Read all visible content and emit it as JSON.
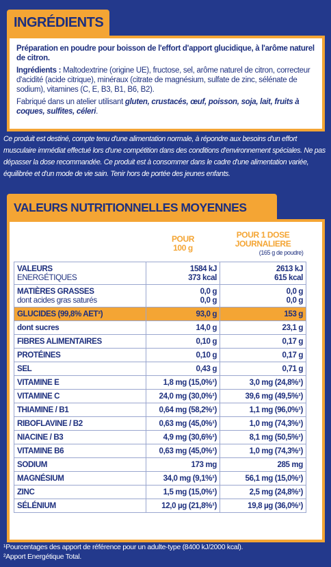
{
  "ingredients_section": {
    "title": "INGRÉDIENTS",
    "paragraphs": [
      [
        {
          "text": "Préparation en poudre pour boisson de l'effort d'apport glucidique, à l'arôme naturel de citron.",
          "style": "bold"
        }
      ],
      [
        {
          "text": "Ingrédients : ",
          "style": "bold"
        },
        {
          "text": "Maltodextrine (origine UE), fructose, sel, arôme naturel de citron, correcteur d'acidité (acide citrique), minéraux (citrate de magnésium, sulfate de zinc, sélénate de sodium), vitamines (C, E, B3, B1, B6, B2).",
          "style": "normal"
        }
      ],
      [
        {
          "text": "Fabriqué dans un atelier utilisant ",
          "style": "normal"
        },
        {
          "text": "gluten, crustacés, œuf, poisson, soja, lait, fruits à coques, sulfites, céleri",
          "style": "bolditalic"
        },
        {
          "text": ".",
          "style": "normal"
        }
      ]
    ],
    "disclaimer": "Ce produit est destiné, compte tenu d'une alimentation normale, à répondre aux besoins d'un effort musculaire immédiat effectué lors d'une compétition dans des conditions d'environnement spéciales. Ne pas dépasser la dose recommandée. Ce produit est à consommer dans le cadre d'une alimentation variée, équilibrée et d'un mode de vie sain. Tenir hors de portée des jeunes enfants."
  },
  "nutrition_section": {
    "title": "VALEURS NUTRITIONNELLES MOYENNES",
    "header": {
      "per_100g": [
        "POUR",
        "100 g"
      ],
      "per_dose": [
        "POUR 1 DOSE",
        "JOURNALIERE"
      ],
      "per_dose_note": "(165 g de poudre)"
    },
    "rows": [
      {
        "label": [
          "VALEURS",
          "ENERGÉTIQUES"
        ],
        "per_100g": [
          "1584 kJ",
          "373 kcal"
        ],
        "per_dose": [
          "2613 kJ",
          "615 kcal"
        ]
      },
      {
        "label": [
          "MATIÈRES GRASSES",
          "dont acides gras saturés"
        ],
        "per_100g": [
          "0,0 g",
          "0,0 g"
        ],
        "per_dose": [
          "0,0 g",
          "0,0 g"
        ]
      },
      {
        "label": [
          "GLUCIDES (99,8% AET²)"
        ],
        "per_100g": [
          "93,0 g"
        ],
        "per_dose": [
          "153 g"
        ],
        "highlight": true
      },
      {
        "label": [
          "dont sucres"
        ],
        "per_100g": [
          "14,0 g"
        ],
        "per_dose": [
          "23,1 g"
        ]
      },
      {
        "label": [
          "FIBRES ALIMENTAIRES"
        ],
        "per_100g": [
          "0,10 g"
        ],
        "per_dose": [
          "0,17 g"
        ]
      },
      {
        "label": [
          "PROTÉINES"
        ],
        "per_100g": [
          "0,10 g"
        ],
        "per_dose": [
          "0,17 g"
        ]
      },
      {
        "label": [
          "SEL"
        ],
        "per_100g": [
          "0,43 g"
        ],
        "per_dose": [
          "0,71 g"
        ]
      },
      {
        "label": [
          "VITAMINE E"
        ],
        "per_100g": [
          "1,8 mg (15,0%¹)"
        ],
        "per_dose": [
          "3,0 mg (24,8%¹)"
        ]
      },
      {
        "label": [
          "VITAMINE C"
        ],
        "per_100g": [
          "24,0 mg (30,0%¹)"
        ],
        "per_dose": [
          "39,6 mg (49,5%¹)"
        ]
      },
      {
        "label": [
          "THIAMINE / B1"
        ],
        "per_100g": [
          "0,64 mg (58,2%¹)"
        ],
        "per_dose": [
          "1,1 mg (96,0%¹)"
        ]
      },
      {
        "label": [
          "RIBOFLAVINE / B2"
        ],
        "per_100g": [
          "0,63 mg (45,0%¹)"
        ],
        "per_dose": [
          "1,0 mg (74,3%¹)"
        ]
      },
      {
        "label": [
          "NIACINE / B3"
        ],
        "per_100g": [
          "4,9 mg (30,6%¹)"
        ],
        "per_dose": [
          "8,1 mg (50,5%¹)"
        ]
      },
      {
        "label": [
          "VITAMINE B6"
        ],
        "per_100g": [
          "0,63 mg (45,0%¹)"
        ],
        "per_dose": [
          "1,0 mg (74,3%¹)"
        ]
      },
      {
        "label": [
          "SODIUM"
        ],
        "per_100g": [
          "173 mg"
        ],
        "per_dose": [
          "285 mg"
        ]
      },
      {
        "label": [
          "MAGNÉSIUM"
        ],
        "per_100g": [
          "34,0 mg (9,1%¹)"
        ],
        "per_dose": [
          "56,1 mg (15,0%¹)"
        ]
      },
      {
        "label": [
          "ZINC"
        ],
        "per_100g": [
          "1,5 mg (15,0%¹)"
        ],
        "per_dose": [
          "2,5 mg (24,8%¹)"
        ]
      },
      {
        "label": [
          "SÉLÉNIUM"
        ],
        "per_100g": [
          "12,0 µg (21,8%¹)"
        ],
        "per_dose": [
          "19,8 µg (36,0%¹)"
        ]
      }
    ],
    "footnotes": [
      "¹Pourcentages des apport de référence pour un adulte-type (8400 kJ/2000 kcal).",
      "²Apport Energétique Total."
    ]
  }
}
